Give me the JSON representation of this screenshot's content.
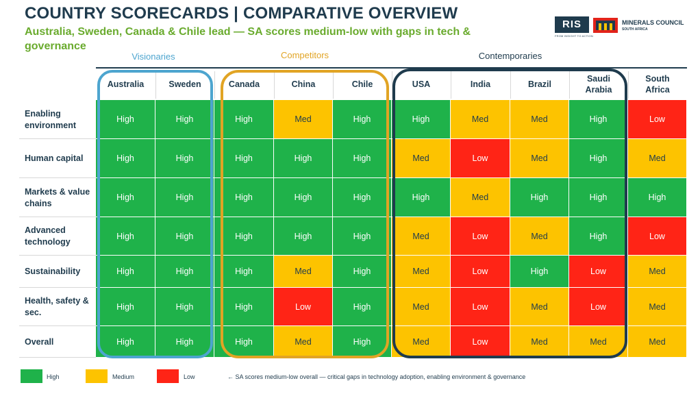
{
  "header": {
    "title": "COUNTRY SCORECARDS | COMPARATIVE OVERVIEW",
    "subtitle": "Australia, Sweden, Canada & Chile lead — SA scores medium-low with gaps in tech & governance"
  },
  "logos": {
    "ris_text": "RIS",
    "ris_tagline": "FROM INSIGHT TO ACTION",
    "council_name": "MINERALS COUNCIL",
    "council_sub": "SOUTH AFRICA"
  },
  "groups": {
    "visionaries": "Visionaries",
    "competitors": "Competitors",
    "contemporaries": "Contemporaries"
  },
  "columns": [
    "Australia",
    "Sweden",
    "Canada",
    "China",
    "Chile",
    "USA",
    "India",
    "Brazil",
    "Saudi Arabia",
    "South Africa"
  ],
  "rows": [
    {
      "label": "Enabling environment",
      "values": [
        "High",
        "High",
        "High",
        "Med",
        "High",
        "High",
        "Med",
        "Med",
        "High",
        "Low"
      ]
    },
    {
      "label": "Human capital",
      "values": [
        "High",
        "High",
        "High",
        "High",
        "High",
        "Med",
        "Low",
        "Med",
        "High",
        "Med"
      ]
    },
    {
      "label": "Markets & value chains",
      "values": [
        "High",
        "High",
        "High",
        "High",
        "High",
        "High",
        "Med",
        "High",
        "High",
        "High"
      ]
    },
    {
      "label": "Advanced technology",
      "values": [
        "High",
        "High",
        "High",
        "High",
        "High",
        "Med",
        "Low",
        "Med",
        "High",
        "Low"
      ]
    },
    {
      "label": "Sustainability",
      "values": [
        "High",
        "High",
        "High",
        "Med",
        "High",
        "Med",
        "Low",
        "High",
        "Low",
        "Med"
      ]
    },
    {
      "label": "Health, safety & sec.",
      "values": [
        "High",
        "High",
        "High",
        "Low",
        "High",
        "Med",
        "Low",
        "Med",
        "Low",
        "Med"
      ]
    },
    {
      "label": "Overall",
      "values": [
        "High",
        "High",
        "High",
        "Med",
        "High",
        "Med",
        "Low",
        "Med",
        "Med",
        "Med"
      ]
    }
  ],
  "legend": [
    {
      "label": "High",
      "color": "#1fb24a"
    },
    {
      "label": "Medium",
      "color": "#fdc300"
    },
    {
      "label": "Low",
      "color": "#ff2416"
    }
  ],
  "note": "← SA scores medium-low overall — critical gaps in technology adoption, enabling environment & governance",
  "colors": {
    "high": "#1fb24a",
    "medium": "#fdc300",
    "low": "#ff2416",
    "navy": "#1f3b4d",
    "green_text": "#6aab2e"
  }
}
